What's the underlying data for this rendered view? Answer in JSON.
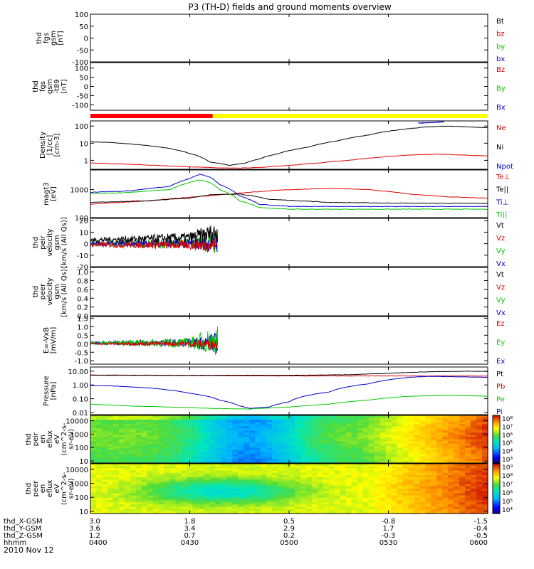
{
  "title": "P3 (TH-D) fields and ground moments overview",
  "date_label": "2010 Nov 12",
  "colors": {
    "black": "#000000",
    "red": "#e00000",
    "green": "#00c800",
    "blue": "#0000d0",
    "yellow": "#ffff00",
    "bar_red": "#ff0000",
    "frame": "#000000"
  },
  "chart_data": [
    {
      "type": "line",
      "id": "fgs_dsl",
      "ylabel": [
        "thd",
        "fgs",
        "gsm",
        "[nT]"
      ],
      "ylim": [
        -100,
        100
      ],
      "yticks": [
        100,
        50,
        0,
        -50,
        -100
      ],
      "legend": [
        {
          "text": "Bt",
          "color": "#000000"
        },
        {
          "text": "bz",
          "color": "#e00000"
        },
        {
          "text": "by",
          "color": "#00c800"
        },
        {
          "text": "bx",
          "color": "#0000d0"
        }
      ],
      "series": []
    },
    {
      "type": "line",
      "id": "fgs_t89",
      "ylabel": [
        "thd",
        "fgs",
        "gsm",
        "-t89",
        "[nT]"
      ],
      "ylim": [
        -130,
        130
      ],
      "yticks": [
        100,
        50,
        0,
        -50,
        -100
      ],
      "legend": [
        {
          "text": "Bz",
          "color": "#e00000"
        },
        {
          "text": "By",
          "color": "#00c800"
        },
        {
          "text": "Bx",
          "color": "#0000d0"
        }
      ],
      "series": []
    },
    {
      "type": "bar",
      "id": "mode_bar",
      "segments": [
        {
          "start": 4.0,
          "end": 4.615,
          "color": "#ff0000"
        },
        {
          "start": 4.615,
          "end": 6.0,
          "color": "#ffff00"
        }
      ]
    },
    {
      "type": "line",
      "id": "density",
      "yscale": "log",
      "ylabel": [
        "Density",
        "[1/cc]",
        "[cm-3]"
      ],
      "ylim": [
        0.3,
        200
      ],
      "yticks": [
        100,
        10,
        1
      ],
      "ytick_labels": [
        "100",
        "10",
        "1"
      ],
      "legend": [
        {
          "text": "Ne",
          "color": "#e00000"
        },
        {
          "text": "Ni",
          "color": "#000000"
        },
        {
          "text": "Npot",
          "color": "#0000d0"
        }
      ],
      "series": [
        {
          "color": "#000000",
          "x": [
            4.0,
            4.1,
            4.2,
            4.35,
            4.5,
            4.6,
            4.7,
            4.78,
            4.85,
            4.95,
            5.1,
            5.25,
            5.4,
            5.55,
            5.7,
            5.8,
            5.9,
            6.0
          ],
          "y": [
            12,
            11,
            9,
            6,
            2.5,
            0.8,
            0.5,
            0.7,
            1.2,
            2.5,
            6,
            14,
            30,
            60,
            90,
            100,
            90,
            80
          ]
        },
        {
          "color": "#e00000",
          "x": [
            4.0,
            4.15,
            4.3,
            4.5,
            4.65,
            4.75,
            4.85,
            5.0,
            5.15,
            5.3,
            5.45,
            5.6,
            5.75,
            5.9,
            6.0
          ],
          "y": [
            0.7,
            0.62,
            0.52,
            0.42,
            0.36,
            0.35,
            0.38,
            0.5,
            0.7,
            1.0,
            1.5,
            2.0,
            2.3,
            2.0,
            1.8
          ]
        },
        {
          "color": "#0000d0",
          "x": [
            5.65,
            5.72,
            5.78
          ],
          "y": [
            150,
            160,
            180
          ]
        }
      ]
    },
    {
      "type": "line",
      "id": "temperature",
      "yscale": "log",
      "ylabel": [
        "magt3",
        "[eV]"
      ],
      "ylim": [
        100,
        5000
      ],
      "yticks": [
        1000,
        100
      ],
      "ytick_labels": [
        "1000",
        "100"
      ],
      "legend": [
        {
          "text": "Te⊥",
          "color": "#e00000"
        },
        {
          "text": "Te||",
          "color": "#000000"
        },
        {
          "text": "Ti⊥",
          "color": "#0000d0"
        },
        {
          "text": "Ti||",
          "color": "#00c800"
        }
      ],
      "series": [
        {
          "color": "#e00000",
          "x": [
            4.0,
            4.3,
            4.6,
            4.8,
            5.0,
            5.2,
            5.4,
            5.6,
            5.8,
            6.0
          ],
          "y": [
            300,
            400,
            600,
            800,
            1000,
            1100,
            1000,
            700,
            550,
            500
          ]
        },
        {
          "color": "#000000",
          "x": [
            4.0,
            4.3,
            4.5,
            4.6,
            4.75,
            4.9,
            5.2,
            5.5,
            6.0
          ],
          "y": [
            350,
            400,
            500,
            650,
            700,
            450,
            350,
            330,
            320
          ]
        },
        {
          "color": "#0000d0",
          "x": [
            4.0,
            4.2,
            4.4,
            4.5,
            4.55,
            4.6,
            4.65,
            4.75,
            4.85,
            5.0,
            5.5,
            6.0
          ],
          "y": [
            800,
            900,
            1300,
            2500,
            3500,
            2800,
            1500,
            600,
            300,
            250,
            250,
            250
          ]
        },
        {
          "color": "#00c800",
          "x": [
            4.0,
            4.2,
            4.4,
            4.5,
            4.55,
            4.6,
            4.65,
            4.75,
            4.85,
            5.0,
            5.5,
            6.0
          ],
          "y": [
            700,
            800,
            1000,
            1800,
            2200,
            1800,
            1000,
            400,
            230,
            200,
            200,
            200
          ]
        }
      ]
    },
    {
      "type": "line",
      "id": "peir_velocity",
      "noise": true,
      "ylabel": [
        "thd",
        "peir",
        "velocity",
        "gsm",
        "[km/s (All Qs)]"
      ],
      "ylim": [
        -20,
        22
      ],
      "yticks": [
        20,
        10,
        0,
        -10,
        -20
      ],
      "legend": [
        {
          "text": "Vt",
          "color": "#000000"
        },
        {
          "text": "Vz",
          "color": "#e00000"
        },
        {
          "text": "Vy",
          "color": "#00c800"
        },
        {
          "text": "Vx",
          "color": "#0000d0"
        }
      ],
      "series": [
        {
          "color": "#00c800",
          "x": [
            4.0,
            4.5,
            4.64
          ],
          "y": [
            0,
            0,
            0
          ],
          "amp": [
            2,
            5,
            10
          ]
        },
        {
          "color": "#0000d0",
          "x": [
            4.0,
            4.5,
            4.64
          ],
          "y": [
            0,
            0,
            0
          ],
          "amp": [
            1.5,
            4,
            8
          ]
        },
        {
          "color": "#e00000",
          "x": [
            4.0,
            4.5,
            4.64
          ],
          "y": [
            -1,
            -1,
            -1
          ],
          "amp": [
            2,
            4,
            8
          ]
        },
        {
          "color": "#000000",
          "x": [
            4.0,
            4.5,
            4.64
          ],
          "y": [
            3,
            5,
            10
          ],
          "amp": [
            2,
            5,
            9
          ]
        }
      ]
    },
    {
      "type": "line",
      "id": "peer_velocity",
      "ylabel": [
        "thd",
        "peer",
        "velocity",
        "gsm",
        "[km/s (All Qs)]"
      ],
      "ylim": [
        0,
        1.1
      ],
      "yticks": [
        1.0,
        0.8,
        0.6,
        0.4,
        0.2,
        0.0
      ],
      "ytick_labels": [
        "1.0",
        "0.8",
        "0.6",
        "0.4",
        "0.2",
        "0.0"
      ],
      "legend": [
        {
          "text": "Vt",
          "color": "#000000"
        },
        {
          "text": "Vz",
          "color": "#e00000"
        },
        {
          "text": "Vy",
          "color": "#00c800"
        },
        {
          "text": "Vx",
          "color": "#0000d0"
        }
      ],
      "series": []
    },
    {
      "type": "line",
      "id": "efield",
      "noise": true,
      "ylabel": [
        "E=-VxB",
        "[mV/m]"
      ],
      "ylim": [
        -1.2,
        1.6
      ],
      "yticks": [
        1.5,
        1.0,
        0.5,
        0.0,
        -0.5,
        -1.0
      ],
      "ytick_labels": [
        "1.5",
        "1.0",
        "0.5",
        "0.0",
        "-0.5",
        "-1.0"
      ],
      "legend": [
        {
          "text": "Ez",
          "color": "#e00000"
        },
        {
          "text": "Ey",
          "color": "#00c800"
        },
        {
          "text": "Ex",
          "color": "#0000d0"
        }
      ],
      "series": [
        {
          "color": "#0000d0",
          "x": [
            4.0,
            4.5,
            4.64
          ],
          "y": [
            0.05,
            0.05,
            0.05
          ],
          "amp": [
            0.08,
            0.25,
            0.6
          ]
        },
        {
          "color": "#00c800",
          "x": [
            4.0,
            4.5,
            4.64
          ],
          "y": [
            0.05,
            0.05,
            0.2
          ],
          "amp": [
            0.08,
            0.3,
            0.9
          ]
        },
        {
          "color": "#e00000",
          "x": [
            4.0,
            4.5,
            4.64
          ],
          "y": [
            0.0,
            0.0,
            0.0
          ],
          "amp": [
            0.05,
            0.15,
            0.4
          ]
        }
      ]
    },
    {
      "type": "line",
      "id": "pressure",
      "yscale": "log",
      "ylabel": [
        "Pressure",
        "[nPa]"
      ],
      "ylim": [
        0.007,
        20
      ],
      "yticks": [
        10,
        1,
        0.1,
        0.01
      ],
      "ytick_labels": [
        "10.00",
        "1.00",
        "0.10",
        "0.01"
      ],
      "legend": [
        {
          "text": "Pt",
          "color": "#000000"
        },
        {
          "text": "Pb",
          "color": "#e00000"
        },
        {
          "text": "Pe",
          "color": "#00c800"
        },
        {
          "text": "Pi",
          "color": "#0000d0"
        }
      ],
      "series": [
        {
          "color": "#e00000",
          "x": [
            4.0,
            4.5,
            5.0,
            5.5,
            5.8,
            6.0
          ],
          "y": [
            5,
            4.8,
            4.5,
            4.5,
            4.5,
            4.4
          ]
        },
        {
          "color": "#000000",
          "x": [
            4.0,
            4.5,
            5.0,
            5.3,
            5.5,
            5.7,
            5.9,
            6.0
          ],
          "y": [
            5.2,
            5,
            5,
            5.5,
            7,
            9,
            10,
            9.5
          ]
        },
        {
          "color": "#0000d0",
          "x": [
            4.0,
            4.1,
            4.3,
            4.5,
            4.65,
            4.75,
            4.8,
            4.9,
            5.0,
            5.2,
            5.4,
            5.6,
            5.7,
            5.9,
            6.0
          ],
          "y": [
            0.9,
            0.85,
            0.6,
            0.25,
            0.08,
            0.03,
            0.02,
            0.025,
            0.06,
            0.3,
            1.2,
            3.5,
            4.2,
            3.8,
            3.5
          ]
        },
        {
          "color": "#00c800",
          "x": [
            4.0,
            4.2,
            4.4,
            4.6,
            4.8,
            5.0,
            5.2,
            5.4,
            5.6,
            5.8,
            6.0
          ],
          "y": [
            0.04,
            0.03,
            0.025,
            0.02,
            0.018,
            0.025,
            0.04,
            0.08,
            0.15,
            0.18,
            0.15
          ]
        }
      ]
    },
    {
      "type": "heatmap",
      "id": "peir_eflux",
      "yscale": "log",
      "ylabel": [
        "thd",
        "peir",
        "en",
        "eflux",
        "eV",
        "(cm^2-s-",
        "sr-eV)"
      ],
      "ylim": [
        7,
        25000
      ],
      "yticks": [
        10000,
        1000,
        100,
        10
      ],
      "ytick_labels": [
        "10000",
        "1000",
        "100",
        "10"
      ],
      "colorbar": {
        "labels": [
          "10⁸",
          "10⁷",
          "10⁶",
          "10⁵",
          "10⁴",
          "10³"
        ]
      }
    },
    {
      "type": "heatmap",
      "id": "peer_eflux",
      "yscale": "log",
      "ylabel": [
        "thd",
        "peer",
        "en",
        "eflux",
        "eV",
        "(cm^2-s-",
        "sr-eV)"
      ],
      "ylim": [
        7,
        25000
      ],
      "yticks": [
        10000,
        1000,
        100,
        10
      ],
      "ytick_labels": [
        "10000",
        "1000",
        "100",
        "10"
      ],
      "colorbar": {
        "labels": [
          "10⁹",
          "10⁸",
          "10⁷",
          "10⁶",
          "10⁵",
          "10⁴"
        ]
      }
    }
  ],
  "x_axis": {
    "range": [
      4.0,
      6.0
    ],
    "tick_positions": [
      4.0,
      4.5,
      5.0,
      5.5,
      6.0
    ],
    "rows": [
      {
        "label": "thd_X-GSM",
        "values": [
          "3.0",
          "1.8",
          "0.5",
          "-0.8",
          "-1.5"
        ]
      },
      {
        "label": "thd_Y-GSM",
        "values": [
          "3.6",
          "3.4",
          "2.9",
          "1.7",
          "-0.4"
        ]
      },
      {
        "label": "thd_Z-GSM",
        "values": [
          "1.2",
          "0.7",
          "0.2",
          "-0.3",
          "-0.5"
        ]
      },
      {
        "label": "hhmm",
        "values": [
          "0400",
          "0430",
          "0500",
          "0530",
          "0600"
        ]
      }
    ]
  }
}
